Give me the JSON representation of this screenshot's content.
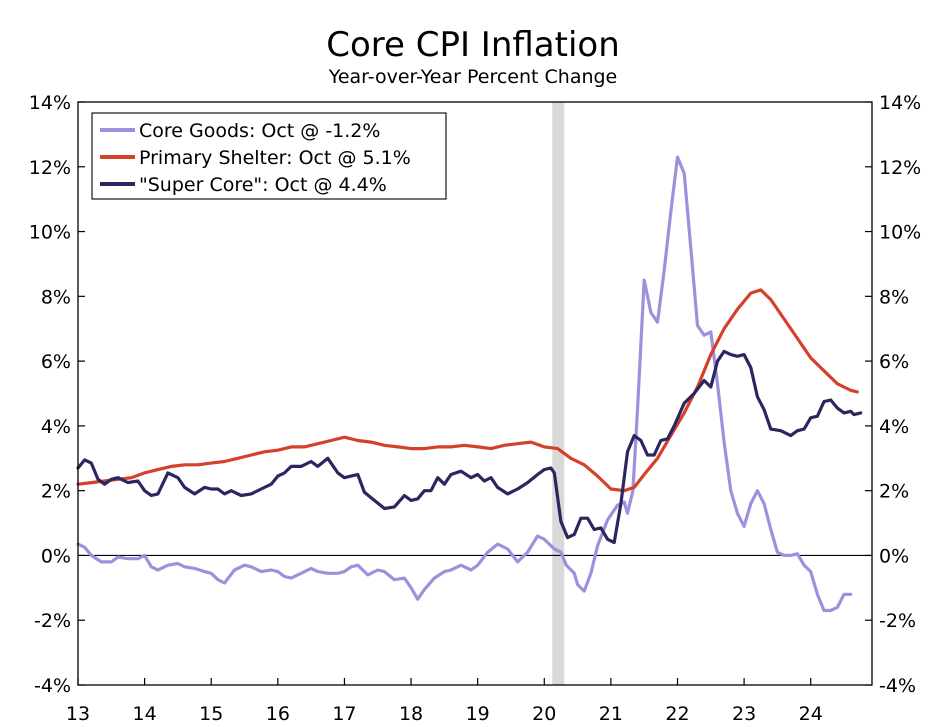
{
  "chart_data": {
    "type": "line",
    "title": "Core CPI Inflation",
    "subtitle": "Year-over-Year Percent Change",
    "xlabel": "",
    "ylabel": "",
    "xlim": [
      2013.0,
      2024.92
    ],
    "ylim": [
      -4,
      14
    ],
    "y_ticks": [
      -4,
      -2,
      0,
      2,
      4,
      6,
      8,
      10,
      12,
      14
    ],
    "y_tick_labels": [
      "-4%",
      "-2%",
      "0%",
      "2%",
      "4%",
      "6%",
      "8%",
      "10%",
      "12%",
      "14%"
    ],
    "x_ticks": [
      2013,
      2014,
      2015,
      2016,
      2017,
      2018,
      2019,
      2020,
      2021,
      2022,
      2023,
      2024
    ],
    "x_tick_labels": [
      "13",
      "14",
      "15",
      "16",
      "17",
      "18",
      "19",
      "20",
      "21",
      "22",
      "23",
      "24"
    ],
    "shaded_region": [
      2020.12,
      2020.3
    ],
    "legend_position": "top-left",
    "series": [
      {
        "name": "Core Goods: Oct @ -1.2%",
        "color": "#a08fdc",
        "points": [
          [
            2013.0,
            0.35
          ],
          [
            2013.1,
            0.25
          ],
          [
            2013.2,
            0.0
          ],
          [
            2013.35,
            -0.2
          ],
          [
            2013.5,
            -0.2
          ],
          [
            2013.6,
            -0.05
          ],
          [
            2013.75,
            -0.1
          ],
          [
            2013.9,
            -0.1
          ],
          [
            2014.0,
            0.0
          ],
          [
            2014.1,
            -0.35
          ],
          [
            2014.2,
            -0.45
          ],
          [
            2014.35,
            -0.3
          ],
          [
            2014.5,
            -0.25
          ],
          [
            2014.6,
            -0.35
          ],
          [
            2014.75,
            -0.4
          ],
          [
            2014.9,
            -0.5
          ],
          [
            2015.0,
            -0.55
          ],
          [
            2015.1,
            -0.75
          ],
          [
            2015.2,
            -0.85
          ],
          [
            2015.35,
            -0.45
          ],
          [
            2015.5,
            -0.3
          ],
          [
            2015.6,
            -0.35
          ],
          [
            2015.75,
            -0.5
          ],
          [
            2015.9,
            -0.45
          ],
          [
            2016.0,
            -0.5
          ],
          [
            2016.1,
            -0.65
          ],
          [
            2016.2,
            -0.7
          ],
          [
            2016.35,
            -0.55
          ],
          [
            2016.5,
            -0.4
          ],
          [
            2016.6,
            -0.5
          ],
          [
            2016.75,
            -0.55
          ],
          [
            2016.9,
            -0.55
          ],
          [
            2017.0,
            -0.5
          ],
          [
            2017.1,
            -0.35
          ],
          [
            2017.2,
            -0.3
          ],
          [
            2017.35,
            -0.6
          ],
          [
            2017.5,
            -0.45
          ],
          [
            2017.6,
            -0.5
          ],
          [
            2017.75,
            -0.75
          ],
          [
            2017.9,
            -0.7
          ],
          [
            2018.0,
            -1.0
          ],
          [
            2018.1,
            -1.35
          ],
          [
            2018.2,
            -1.05
          ],
          [
            2018.35,
            -0.7
          ],
          [
            2018.5,
            -0.5
          ],
          [
            2018.6,
            -0.45
          ],
          [
            2018.75,
            -0.3
          ],
          [
            2018.9,
            -0.45
          ],
          [
            2019.0,
            -0.3
          ],
          [
            2019.15,
            0.1
          ],
          [
            2019.3,
            0.35
          ],
          [
            2019.45,
            0.2
          ],
          [
            2019.6,
            -0.2
          ],
          [
            2019.75,
            0.1
          ],
          [
            2019.9,
            0.6
          ],
          [
            2020.0,
            0.5
          ],
          [
            2020.15,
            0.2
          ],
          [
            2020.25,
            0.1
          ],
          [
            2020.33,
            -0.3
          ],
          [
            2020.45,
            -0.55
          ],
          [
            2020.5,
            -0.9
          ],
          [
            2020.6,
            -1.1
          ],
          [
            2020.7,
            -0.55
          ],
          [
            2020.8,
            0.3
          ],
          [
            2020.95,
            1.1
          ],
          [
            2021.1,
            1.55
          ],
          [
            2021.2,
            1.65
          ],
          [
            2021.25,
            1.3
          ],
          [
            2021.33,
            2.0
          ],
          [
            2021.4,
            4.5
          ],
          [
            2021.5,
            8.5
          ],
          [
            2021.6,
            7.5
          ],
          [
            2021.7,
            7.2
          ],
          [
            2021.8,
            8.8
          ],
          [
            2021.9,
            10.6
          ],
          [
            2022.0,
            12.3
          ],
          [
            2022.1,
            11.8
          ],
          [
            2022.2,
            9.5
          ],
          [
            2022.3,
            7.1
          ],
          [
            2022.4,
            6.8
          ],
          [
            2022.5,
            6.9
          ],
          [
            2022.6,
            5.3
          ],
          [
            2022.7,
            3.5
          ],
          [
            2022.8,
            2.0
          ],
          [
            2022.9,
            1.3
          ],
          [
            2023.0,
            0.9
          ],
          [
            2023.1,
            1.6
          ],
          [
            2023.2,
            2.0
          ],
          [
            2023.3,
            1.6
          ],
          [
            2023.4,
            0.8
          ],
          [
            2023.5,
            0.1
          ],
          [
            2023.6,
            0.0
          ],
          [
            2023.7,
            0.0
          ],
          [
            2023.8,
            0.05
          ],
          [
            2023.9,
            -0.3
          ],
          [
            2024.0,
            -0.5
          ],
          [
            2024.1,
            -1.2
          ],
          [
            2024.2,
            -1.7
          ],
          [
            2024.3,
            -1.7
          ],
          [
            2024.4,
            -1.6
          ],
          [
            2024.5,
            -1.2
          ],
          [
            2024.6,
            -1.2
          ]
        ]
      },
      {
        "name": "Primary Shelter: Oct @ 5.1%",
        "color": "#d5402b",
        "points": [
          [
            2013.0,
            2.2
          ],
          [
            2013.2,
            2.25
          ],
          [
            2013.4,
            2.3
          ],
          [
            2013.6,
            2.35
          ],
          [
            2013.8,
            2.4
          ],
          [
            2014.0,
            2.55
          ],
          [
            2014.2,
            2.65
          ],
          [
            2014.4,
            2.75
          ],
          [
            2014.6,
            2.8
          ],
          [
            2014.8,
            2.8
          ],
          [
            2015.0,
            2.85
          ],
          [
            2015.2,
            2.9
          ],
          [
            2015.4,
            3.0
          ],
          [
            2015.6,
            3.1
          ],
          [
            2015.8,
            3.2
          ],
          [
            2016.0,
            3.25
          ],
          [
            2016.2,
            3.35
          ],
          [
            2016.4,
            3.35
          ],
          [
            2016.6,
            3.45
          ],
          [
            2016.8,
            3.55
          ],
          [
            2017.0,
            3.65
          ],
          [
            2017.2,
            3.55
          ],
          [
            2017.4,
            3.5
          ],
          [
            2017.6,
            3.4
          ],
          [
            2017.8,
            3.35
          ],
          [
            2018.0,
            3.3
          ],
          [
            2018.2,
            3.3
          ],
          [
            2018.4,
            3.35
          ],
          [
            2018.6,
            3.35
          ],
          [
            2018.8,
            3.4
          ],
          [
            2019.0,
            3.35
          ],
          [
            2019.2,
            3.3
          ],
          [
            2019.4,
            3.4
          ],
          [
            2019.6,
            3.45
          ],
          [
            2019.8,
            3.5
          ],
          [
            2020.0,
            3.35
          ],
          [
            2020.2,
            3.3
          ],
          [
            2020.4,
            3.0
          ],
          [
            2020.6,
            2.8
          ],
          [
            2020.8,
            2.45
          ],
          [
            2021.0,
            2.05
          ],
          [
            2021.2,
            2.0
          ],
          [
            2021.35,
            2.1
          ],
          [
            2021.5,
            2.5
          ],
          [
            2021.7,
            3.0
          ],
          [
            2021.9,
            3.7
          ],
          [
            2022.1,
            4.4
          ],
          [
            2022.3,
            5.2
          ],
          [
            2022.5,
            6.2
          ],
          [
            2022.7,
            7.0
          ],
          [
            2022.9,
            7.6
          ],
          [
            2023.1,
            8.1
          ],
          [
            2023.25,
            8.2
          ],
          [
            2023.4,
            7.9
          ],
          [
            2023.6,
            7.3
          ],
          [
            2023.8,
            6.7
          ],
          [
            2024.0,
            6.1
          ],
          [
            2024.2,
            5.7
          ],
          [
            2024.4,
            5.3
          ],
          [
            2024.6,
            5.1
          ],
          [
            2024.7,
            5.05
          ]
        ]
      },
      {
        "name": "\"Super Core\": Oct @ 4.4%",
        "color": "#2b2660",
        "points": [
          [
            2013.0,
            2.7
          ],
          [
            2013.1,
            2.95
          ],
          [
            2013.2,
            2.85
          ],
          [
            2013.3,
            2.35
          ],
          [
            2013.4,
            2.2
          ],
          [
            2013.5,
            2.35
          ],
          [
            2013.6,
            2.4
          ],
          [
            2013.75,
            2.25
          ],
          [
            2013.9,
            2.3
          ],
          [
            2014.0,
            2.0
          ],
          [
            2014.1,
            1.85
          ],
          [
            2014.2,
            1.9
          ],
          [
            2014.35,
            2.55
          ],
          [
            2014.5,
            2.4
          ],
          [
            2014.6,
            2.1
          ],
          [
            2014.75,
            1.9
          ],
          [
            2014.9,
            2.1
          ],
          [
            2015.0,
            2.05
          ],
          [
            2015.1,
            2.05
          ],
          [
            2015.2,
            1.9
          ],
          [
            2015.3,
            2.0
          ],
          [
            2015.45,
            1.85
          ],
          [
            2015.6,
            1.9
          ],
          [
            2015.75,
            2.05
          ],
          [
            2015.9,
            2.2
          ],
          [
            2016.0,
            2.45
          ],
          [
            2016.1,
            2.55
          ],
          [
            2016.2,
            2.75
          ],
          [
            2016.35,
            2.75
          ],
          [
            2016.5,
            2.9
          ],
          [
            2016.6,
            2.75
          ],
          [
            2016.75,
            3.0
          ],
          [
            2016.9,
            2.55
          ],
          [
            2017.0,
            2.4
          ],
          [
            2017.1,
            2.45
          ],
          [
            2017.2,
            2.5
          ],
          [
            2017.3,
            1.95
          ],
          [
            2017.45,
            1.7
          ],
          [
            2017.6,
            1.45
          ],
          [
            2017.75,
            1.5
          ],
          [
            2017.9,
            1.85
          ],
          [
            2018.0,
            1.7
          ],
          [
            2018.1,
            1.75
          ],
          [
            2018.2,
            2.0
          ],
          [
            2018.3,
            2.0
          ],
          [
            2018.4,
            2.4
          ],
          [
            2018.5,
            2.2
          ],
          [
            2018.6,
            2.5
          ],
          [
            2018.75,
            2.6
          ],
          [
            2018.9,
            2.4
          ],
          [
            2019.0,
            2.5
          ],
          [
            2019.1,
            2.3
          ],
          [
            2019.2,
            2.4
          ],
          [
            2019.3,
            2.1
          ],
          [
            2019.45,
            1.9
          ],
          [
            2019.6,
            2.05
          ],
          [
            2019.75,
            2.25
          ],
          [
            2019.9,
            2.5
          ],
          [
            2020.0,
            2.65
          ],
          [
            2020.1,
            2.7
          ],
          [
            2020.15,
            2.55
          ],
          [
            2020.25,
            1.05
          ],
          [
            2020.35,
            0.55
          ],
          [
            2020.45,
            0.65
          ],
          [
            2020.55,
            1.15
          ],
          [
            2020.65,
            1.15
          ],
          [
            2020.75,
            0.8
          ],
          [
            2020.85,
            0.85
          ],
          [
            2020.95,
            0.5
          ],
          [
            2021.05,
            0.4
          ],
          [
            2021.15,
            1.6
          ],
          [
            2021.25,
            3.2
          ],
          [
            2021.35,
            3.7
          ],
          [
            2021.45,
            3.55
          ],
          [
            2021.55,
            3.1
          ],
          [
            2021.65,
            3.1
          ],
          [
            2021.75,
            3.55
          ],
          [
            2021.85,
            3.6
          ],
          [
            2021.95,
            4.0
          ],
          [
            2022.1,
            4.7
          ],
          [
            2022.25,
            5.0
          ],
          [
            2022.4,
            5.4
          ],
          [
            2022.5,
            5.2
          ],
          [
            2022.6,
            6.0
          ],
          [
            2022.7,
            6.3
          ],
          [
            2022.8,
            6.2
          ],
          [
            2022.9,
            6.15
          ],
          [
            2023.0,
            6.2
          ],
          [
            2023.1,
            5.8
          ],
          [
            2023.2,
            4.9
          ],
          [
            2023.3,
            4.5
          ],
          [
            2023.4,
            3.9
          ],
          [
            2023.55,
            3.85
          ],
          [
            2023.7,
            3.7
          ],
          [
            2023.8,
            3.85
          ],
          [
            2023.9,
            3.9
          ],
          [
            2024.0,
            4.25
          ],
          [
            2024.1,
            4.3
          ],
          [
            2024.2,
            4.75
          ],
          [
            2024.3,
            4.8
          ],
          [
            2024.4,
            4.55
          ],
          [
            2024.5,
            4.4
          ],
          [
            2024.6,
            4.45
          ],
          [
            2024.65,
            4.35
          ],
          [
            2024.75,
            4.4
          ]
        ]
      }
    ]
  }
}
